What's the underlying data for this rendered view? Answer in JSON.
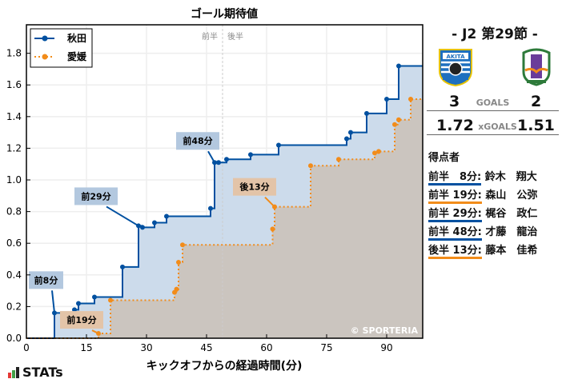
{
  "chart_data": {
    "type": "line",
    "subtype": "step",
    "title": "ゴール期待値",
    "xlabel": "キックオフからの経過時間(分)",
    "ylabel": "",
    "xlim": [
      0,
      99
    ],
    "ylim": [
      0,
      1.98
    ],
    "xticks": [
      0,
      15,
      30,
      45,
      60,
      75,
      90
    ],
    "yticks": [
      0.0,
      0.2,
      0.4,
      0.6,
      0.8,
      1.0,
      1.2,
      1.4,
      1.6,
      1.8
    ],
    "grid": true,
    "legend_position": "upper left",
    "halftime_x": 49,
    "halftime_labels": [
      "前半",
      "後半"
    ],
    "watermark": "© SPORTERIA",
    "series": [
      {
        "name": "秋田",
        "color": "#0050a0",
        "fill": "#c9d9ea",
        "style": "solid",
        "points": [
          [
            7,
            0.16
          ],
          [
            12,
            0.18
          ],
          [
            13,
            0.22
          ],
          [
            17,
            0.26
          ],
          [
            24,
            0.45
          ],
          [
            28,
            0.71
          ],
          [
            29,
            0.7
          ],
          [
            32,
            0.73
          ],
          [
            35,
            0.77
          ],
          [
            46,
            0.82
          ],
          [
            47,
            1.11
          ],
          [
            48,
            1.11
          ],
          [
            50,
            1.13
          ],
          [
            56,
            1.16
          ],
          [
            63,
            1.22
          ],
          [
            80,
            1.26
          ],
          [
            81,
            1.3
          ],
          [
            85,
            1.42
          ],
          [
            90,
            1.51
          ],
          [
            93,
            1.72
          ],
          [
            99,
            1.72
          ]
        ]
      },
      {
        "name": "愛媛",
        "color": "#f28c1a",
        "fill": "#cbc5bf",
        "style": "dotted",
        "points": [
          [
            18,
            0.03
          ],
          [
            21,
            0.24
          ],
          [
            37,
            0.29
          ],
          [
            37.5,
            0.31
          ],
          [
            38,
            0.48
          ],
          [
            39,
            0.59
          ],
          [
            61.5,
            0.69
          ],
          [
            62,
            0.83
          ],
          [
            71,
            1.09
          ],
          [
            78,
            1.13
          ],
          [
            87,
            1.17
          ],
          [
            88,
            1.18
          ],
          [
            92,
            1.35
          ],
          [
            93,
            1.38
          ],
          [
            96,
            1.51
          ],
          [
            99,
            1.51
          ]
        ]
      }
    ],
    "annotations": [
      {
        "label": "前8分",
        "team": "秋田",
        "x": 7,
        "y": 0.16
      },
      {
        "label": "前19分",
        "team": "愛媛",
        "x": 18,
        "y": 0.03
      },
      {
        "label": "前29分",
        "team": "秋田",
        "x": 28,
        "y": 0.71
      },
      {
        "label": "前48分",
        "team": "秋田",
        "x": 47,
        "y": 1.11
      },
      {
        "label": "後13分",
        "team": "愛媛",
        "x": 62,
        "y": 0.83
      }
    ]
  },
  "match": {
    "round": "- J2 第29節 -",
    "home_team": "秋田",
    "away_team": "愛媛",
    "home_logo_text": "AKITA",
    "away_logo_text": "EFC",
    "goals_label": "GOALS",
    "home_goals": "3",
    "away_goals": "2",
    "xgoals_label": "xGOALS",
    "home_xg": "1.72",
    "away_xg": "1.51"
  },
  "scorers": {
    "title": "得点者",
    "items": [
      {
        "time": "前半　8分",
        "name": "鈴木　翔大",
        "team": "home"
      },
      {
        "time": "前半 19分",
        "name": "森山　公弥",
        "team": "away"
      },
      {
        "time": "前半 29分",
        "name": "梶谷　政仁",
        "team": "home"
      },
      {
        "time": "前半 48分",
        "name": "才藤　龍治",
        "team": "home"
      },
      {
        "time": "後半 13分",
        "name": "藤本　佳希",
        "team": "away"
      }
    ]
  },
  "brand": {
    "name": "STATs"
  },
  "colors": {
    "home": "#0050a0",
    "away": "#f28c1a"
  }
}
